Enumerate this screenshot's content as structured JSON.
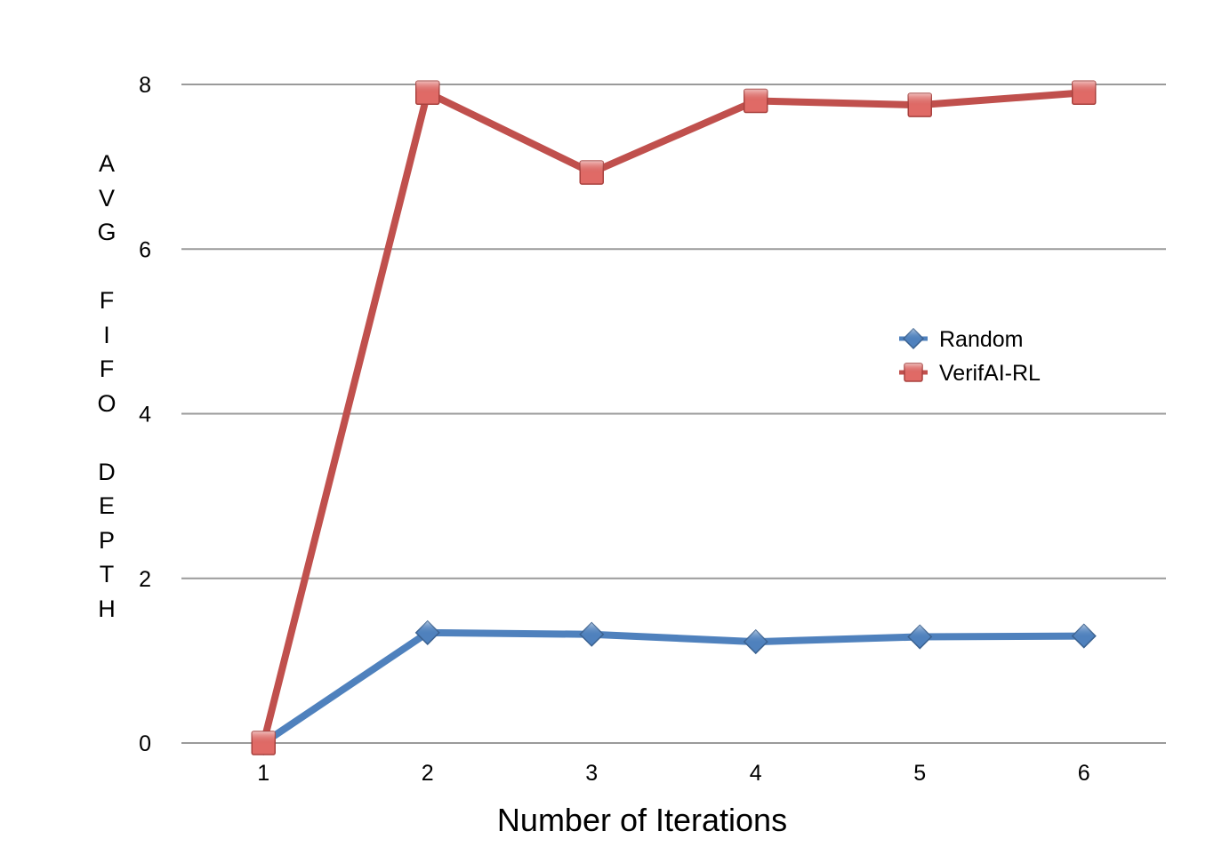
{
  "chart_data": {
    "type": "line",
    "title": "",
    "xlabel": "Number of Iterations",
    "ylabel": "AVG FIFO DEPTH",
    "x": [
      1,
      2,
      3,
      4,
      5,
      6
    ],
    "x_tick_labels": [
      "1",
      "2",
      "3",
      "4",
      "5",
      "6"
    ],
    "ylim": [
      0,
      8
    ],
    "y_ticks": [
      0,
      2,
      4,
      6,
      8
    ],
    "y_tick_labels": [
      "0",
      "2",
      "4",
      "6",
      "8"
    ],
    "grid": "horizontal",
    "legend_position": "right",
    "series": [
      {
        "name": "Random",
        "values": [
          0,
          1.34,
          1.32,
          1.23,
          1.29,
          1.3
        ],
        "color": "#4f81bd",
        "marker": "diamond"
      },
      {
        "name": "VerifAI-RL",
        "values": [
          0,
          7.9,
          6.93,
          7.8,
          7.75,
          7.9
        ],
        "color": "#c0504d",
        "marker": "square"
      }
    ]
  }
}
